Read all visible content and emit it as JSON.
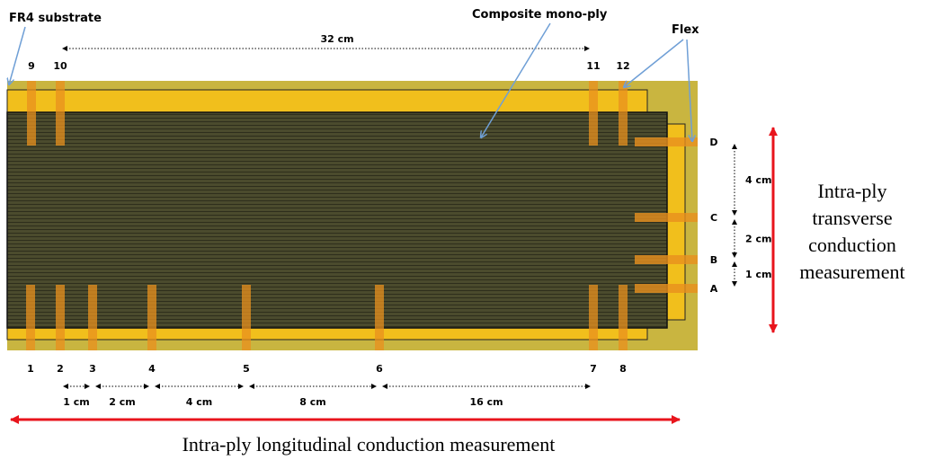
{
  "callouts": {
    "substrate": "FR4  substrate",
    "composite": "Composite mono-ply",
    "flex": "Flex"
  },
  "top_span": "32 cm",
  "top_electrodes": [
    "9",
    "10",
    "11",
    "12"
  ],
  "bottom_electrodes": [
    "1",
    "2",
    "3",
    "4",
    "5",
    "6",
    "7",
    "8"
  ],
  "bottom_spacings": [
    "1 cm",
    "2 cm",
    "4 cm",
    "8 cm",
    "16 cm"
  ],
  "right_electrodes": [
    "D",
    "C",
    "B",
    "A"
  ],
  "right_spacings": [
    "4 cm",
    "2 cm",
    "1 cm"
  ],
  "longitudinal_caption": "Intra-ply longitudinal conduction measurement",
  "transverse_caption": [
    "Intra-ply",
    "transverse",
    "conduction",
    "measurement"
  ],
  "colors": {
    "substrate": "#c9b540",
    "yellow_layer": "#f1bf1c",
    "composite": "#4a4a2c",
    "electrode": "#e8901e",
    "red_arrow": "#e8141c",
    "callout_line": "#6f9fd6"
  }
}
